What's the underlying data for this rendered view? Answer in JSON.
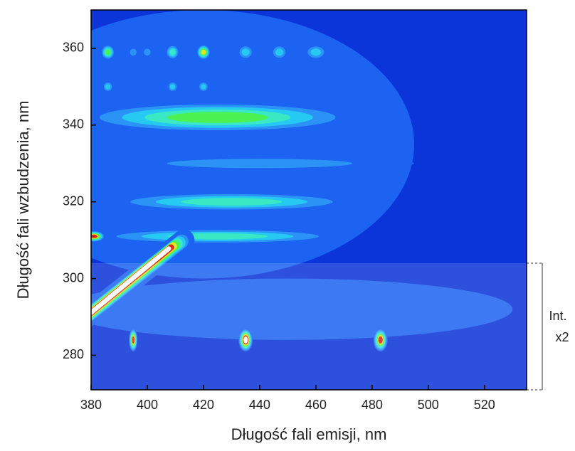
{
  "chart_data": {
    "type": "contour",
    "x_label": "Długość fali emisji,  nm",
    "y_label": "Długość fali wzbudzenia, nm",
    "xlim": [
      380,
      535
    ],
    "ylim": [
      271,
      370
    ],
    "xticks": [
      380,
      400,
      420,
      440,
      460,
      480,
      500,
      520
    ],
    "yticks": [
      280,
      300,
      320,
      340,
      360
    ],
    "colormap": [
      "#0b35d8",
      "#1d63f2",
      "#2c93f6",
      "#25c9f2",
      "#3ae8c4",
      "#4cf252",
      "#e4e422",
      "#d8281a",
      "#ffffff"
    ],
    "features": [
      {
        "x": 420,
        "y": 335,
        "rx": 75,
        "ry": 35,
        "level": 1
      },
      {
        "x": 450,
        "y": 292,
        "rx": 80,
        "ry": 8,
        "level": 1
      },
      {
        "x": 440,
        "y": 330,
        "rx": 55,
        "ry": 2,
        "level": 2
      },
      {
        "x": 425,
        "y": 342,
        "rx": 50,
        "ry": 4,
        "level": 5
      },
      {
        "x": 430,
        "y": 320,
        "rx": 45,
        "ry": 2.5,
        "level": 4
      },
      {
        "x": 425,
        "y": 311,
        "rx": 45,
        "ry": 2,
        "level": 4
      },
      {
        "x": 381,
        "y": 311,
        "rx": 4,
        "ry": 1.5,
        "level": 7
      },
      {
        "x": 386,
        "y": 359,
        "rx": 2.5,
        "ry": 2,
        "level": 5
      },
      {
        "x": 395,
        "y": 359,
        "rx": 2,
        "ry": 1.5,
        "level": 2
      },
      {
        "x": 400,
        "y": 359,
        "rx": 2,
        "ry": 1.5,
        "level": 2
      },
      {
        "x": 409,
        "y": 359,
        "rx": 2.5,
        "ry": 2,
        "level": 4
      },
      {
        "x": 420,
        "y": 359,
        "rx": 2.5,
        "ry": 2,
        "level": 6
      },
      {
        "x": 435,
        "y": 359,
        "rx": 3,
        "ry": 2,
        "level": 3
      },
      {
        "x": 447,
        "y": 359,
        "rx": 3,
        "ry": 2,
        "level": 3
      },
      {
        "x": 460,
        "y": 359,
        "rx": 4,
        "ry": 2,
        "level": 3
      },
      {
        "x": 386,
        "y": 350,
        "rx": 2,
        "ry": 1.5,
        "level": 3
      },
      {
        "x": 409,
        "y": 350,
        "rx": 2,
        "ry": 1.5,
        "level": 3
      },
      {
        "x": 420,
        "y": 350,
        "rx": 2,
        "ry": 1.5,
        "level": 3
      },
      {
        "x": 395,
        "y": 284,
        "rx": 1.5,
        "ry": 3,
        "level": 7
      },
      {
        "x": 435,
        "y": 284,
        "rx": 2.5,
        "ry": 3,
        "level": 8
      },
      {
        "x": 483,
        "y": 284,
        "rx": 2.5,
        "ry": 3,
        "level": 7
      }
    ],
    "streak": {
      "x": [
        380,
        413
      ],
      "y": [
        291,
        310
      ],
      "width": 4,
      "level": 8
    },
    "annotation": {
      "text": [
        "Int.",
        "x2"
      ],
      "y": [
        271,
        304
      ]
    }
  }
}
